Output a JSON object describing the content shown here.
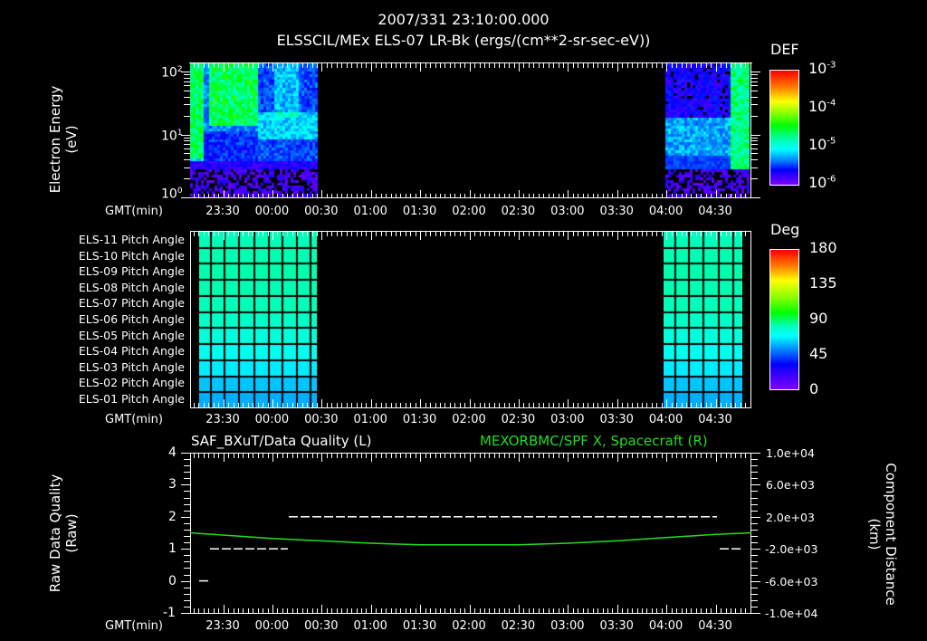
{
  "header": {
    "timestamp": "2007/331 23:10:00.000",
    "subtitle": "ELSSCIL/MEx ELS-07 LR-Bk  (ergs/(cm**2-sr-sec-eV))"
  },
  "time_axis": {
    "label": "GMT(min)",
    "ticks": [
      "23:30",
      "00:00",
      "00:30",
      "01:00",
      "01:30",
      "02:00",
      "02:30",
      "03:00",
      "03:30",
      "04:00",
      "04:30"
    ]
  },
  "panel1": {
    "ylabel_line1": "Electron Energy",
    "ylabel_line2": "(eV)",
    "yticks": [
      {
        "base": "10",
        "exp": "2"
      },
      {
        "base": "10",
        "exp": "1"
      },
      {
        "base": "10",
        "exp": "0"
      }
    ],
    "colorbar": {
      "title": "DEF",
      "ticks": [
        {
          "base": "10",
          "exp": "-3"
        },
        {
          "base": "10",
          "exp": "-4"
        },
        {
          "base": "10",
          "exp": "-5"
        },
        {
          "base": "10",
          "exp": "-6"
        }
      ]
    }
  },
  "panel2": {
    "rows": [
      "ELS-11 Pitch Angle",
      "ELS-10 Pitch Angle",
      "ELS-09 Pitch Angle",
      "ELS-08 Pitch Angle",
      "ELS-07 Pitch Angle",
      "ELS-06 Pitch Angle",
      "ELS-05 Pitch Angle",
      "ELS-04 Pitch Angle",
      "ELS-03 Pitch Angle",
      "ELS-02 Pitch Angle",
      "ELS-01 Pitch Angle"
    ],
    "colorbar": {
      "title": "Deg",
      "ticks": [
        "180",
        "135",
        "90",
        "45",
        "0"
      ]
    }
  },
  "panel3": {
    "title_left": "SAF_BXuT/Data Quality (L)",
    "title_right": "MEXORBMC/SPF X, Spacecraft (R)",
    "title_right_color": "#22dd22",
    "ylabel_left_line1": "Raw Data Quality",
    "ylabel_left_line2": "(Raw)",
    "yticks_left": [
      "4",
      "3",
      "2",
      "1",
      "0",
      "-1"
    ],
    "ylabel_right_line1": "Component Distance",
    "ylabel_right_line2": "(km)",
    "yticks_right": [
      "1.0e+04",
      "6.0e+03",
      "2.0e+03",
      "-2.0e+03",
      "-6.0e+03",
      "-1.0e+04"
    ]
  },
  "chart_data": [
    {
      "type": "heatmap",
      "title": "ELSSCIL/MEx ELS-07 LR-Bk (ergs/(cm**2-sr-sec-eV))",
      "xlabel": "GMT(min)",
      "ylabel": "Electron Energy (eV)",
      "yscale": "log",
      "ylim": [
        1,
        150
      ],
      "x_ticks": [
        "23:30",
        "00:00",
        "00:30",
        "01:00",
        "01:30",
        "02:00",
        "02:30",
        "03:00",
        "03:30",
        "04:00",
        "04:30"
      ],
      "colorbar": {
        "label": "DEF",
        "scale": "log",
        "range": [
          1e-06,
          0.001
        ]
      },
      "data_intervals": [
        [
          "23:10",
          "00:28"
        ],
        [
          "04:03",
          "04:50"
        ]
      ]
    },
    {
      "type": "heatmap",
      "title": "ELS Pitch Angle",
      "xlabel": "GMT(min)",
      "categories": [
        "ELS-11",
        "ELS-10",
        "ELS-09",
        "ELS-08",
        "ELS-07",
        "ELS-06",
        "ELS-05",
        "ELS-04",
        "ELS-03",
        "ELS-02",
        "ELS-01"
      ],
      "values_deg": [
        108,
        110,
        112,
        110,
        108,
        104,
        98,
        92,
        84,
        76,
        72
      ],
      "colorbar": {
        "label": "Deg",
        "range": [
          0,
          180
        ]
      },
      "data_intervals": [
        [
          "23:16",
          "00:28"
        ],
        [
          "04:02",
          "04:50"
        ]
      ]
    },
    {
      "type": "line",
      "title": "SAF_BXuT/Data Quality (L) ; MEXORBMC/SPF X, Spacecraft (R)",
      "xlabel": "GMT(min)",
      "series": [
        {
          "name": "Data Quality (L)",
          "axis": "left",
          "color": "#ffffff",
          "x": [
            "23:15",
            "23:20",
            "23:22",
            "00:10",
            "00:11",
            "04:40",
            "04:42",
            "04:50"
          ],
          "values": [
            0,
            0,
            1,
            1,
            2,
            2,
            1,
            1
          ]
        },
        {
          "name": "SPF X Spacecraft (R)",
          "axis": "right",
          "color": "#22dd22",
          "x": [
            "23:10",
            "00:00",
            "00:30",
            "01:00",
            "01:30",
            "02:00",
            "02:30",
            "03:00",
            "03:30",
            "04:00",
            "04:30",
            "04:50"
          ],
          "values": [
            0,
            -700,
            -1000,
            -1300,
            -1500,
            -1500,
            -1500,
            -1300,
            -1000,
            -600,
            -200,
            0
          ]
        }
      ],
      "ylim_left": [
        -1,
        4
      ],
      "ylim_right": [
        -10000,
        10000
      ]
    }
  ]
}
